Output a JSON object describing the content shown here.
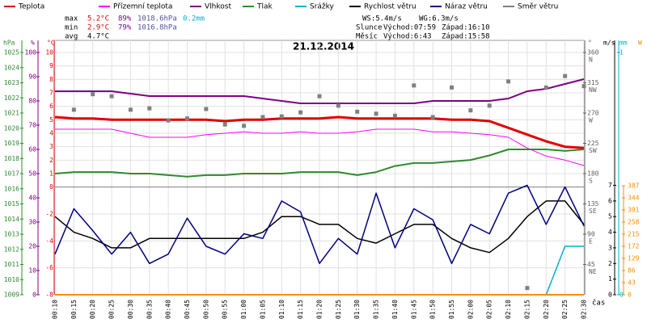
{
  "chart_data": {
    "type": "line",
    "title": "21.12.2014",
    "x_label": "čas",
    "grid": true,
    "categories": [
      "00:10",
      "00:15",
      "00:20",
      "00:25",
      "00:30",
      "00:35",
      "00:40",
      "00:45",
      "00:50",
      "00:55",
      "01:00",
      "01:05",
      "01:10",
      "01:15",
      "01:20",
      "01:25",
      "01:30",
      "01:35",
      "01:40",
      "01:45",
      "01:50",
      "01:55",
      "02:00",
      "02:05",
      "02:10",
      "02:15",
      "02:20",
      "02:25",
      "02:30"
    ],
    "axes": [
      {
        "unit": "hPa",
        "color": "#2e8b2e",
        "ylim": [
          1009,
          1025
        ],
        "ticks": [
          1009,
          1010,
          1011,
          1012,
          1013,
          1014,
          1015,
          1016,
          1017,
          1018,
          1019,
          1020,
          1021,
          1022,
          1023,
          1024,
          1025
        ]
      },
      {
        "unit": "%",
        "color": "#800080",
        "ylim": [
          0,
          100
        ],
        "ticks": [
          0,
          10,
          20,
          30,
          40,
          50,
          60,
          70,
          80,
          90,
          100
        ]
      },
      {
        "unit": "°C",
        "color": "#e00000",
        "ylim": [
          -8,
          10
        ],
        "ticks": [
          10,
          9,
          8,
          7,
          6,
          5,
          4,
          3,
          2,
          1,
          0,
          -2,
          -4,
          -6,
          -8
        ]
      },
      {
        "unit": "°",
        "color": "#606060",
        "ylim": [
          0,
          360
        ],
        "ticks": [
          45,
          90,
          135,
          180,
          225,
          270,
          315,
          360
        ],
        "compass": [
          "NE",
          "E",
          "SE",
          "S",
          "SW",
          "W",
          "NW",
          "N"
        ]
      },
      {
        "unit": "m/s",
        "color": "#000000",
        "ylim": [
          0,
          15.5
        ],
        "ticks": [
          0,
          1,
          2,
          3,
          4,
          5,
          6,
          7
        ]
      },
      {
        "unit": "mm",
        "color": "#00b0d0",
        "ylim": [
          0,
          1
        ],
        "ticks": [
          0,
          1
        ]
      },
      {
        "unit": "W",
        "color": "#ff8c00",
        "ylim": [
          0,
          860
        ],
        "ticks": [
          0,
          43,
          86,
          129,
          172,
          215,
          258,
          301,
          344,
          387
        ]
      }
    ],
    "series": [
      {
        "name": "Teplota",
        "color": "#e00000",
        "axis": "°C",
        "width": 3,
        "values": [
          5.2,
          5.1,
          5.1,
          5.0,
          5.0,
          5.0,
          5.0,
          5.0,
          5.0,
          4.9,
          5.0,
          5.0,
          5.1,
          5.1,
          5.1,
          5.2,
          5.1,
          5.1,
          5.1,
          5.1,
          5.1,
          5.0,
          5.0,
          4.9,
          4.4,
          3.9,
          3.4,
          3.0,
          2.9
        ]
      },
      {
        "name": "Přízemní teplota",
        "color": "#ff00ff",
        "axis": "°C",
        "width": 1,
        "values": [
          4.3,
          4.3,
          4.3,
          4.3,
          4.0,
          3.7,
          3.7,
          3.7,
          3.9,
          4.0,
          4.1,
          4.0,
          4.0,
          4.1,
          4.0,
          4.0,
          4.1,
          4.3,
          4.3,
          4.3,
          4.1,
          4.1,
          4.0,
          3.9,
          3.7,
          2.9,
          2.3,
          2.0,
          1.6
        ]
      },
      {
        "name": "Vlhkost",
        "color": "#800080",
        "axis": "%",
        "width": 2,
        "values": [
          84,
          84,
          84,
          84,
          83,
          82,
          82,
          82,
          82,
          82,
          82,
          81,
          80,
          79,
          79,
          79,
          79,
          79,
          79,
          79,
          80,
          80,
          80,
          80,
          81,
          84,
          85,
          87,
          89
        ]
      },
      {
        "name": "Tlak",
        "color": "#2e8b2e",
        "axis": "hPa",
        "width": 2,
        "values": [
          1017.0,
          1017.1,
          1017.1,
          1017.1,
          1017.0,
          1017.0,
          1016.9,
          1016.8,
          1016.9,
          1016.9,
          1017.0,
          1017.0,
          1017.0,
          1017.1,
          1017.1,
          1017.1,
          1016.9,
          1017.1,
          1017.5,
          1017.7,
          1017.7,
          1017.8,
          1017.9,
          1018.2,
          1018.6,
          1018.6,
          1018.6,
          1018.5,
          1018.6
        ]
      },
      {
        "name": "Srážky",
        "color": "#00b0d0",
        "axis": "mm",
        "width": 1.5,
        "values": [
          0,
          0,
          0,
          0,
          0,
          0,
          0,
          0,
          0,
          0,
          0,
          0,
          0,
          0,
          0,
          0,
          0,
          0,
          0,
          0,
          0,
          0,
          0,
          0,
          0,
          0,
          0,
          0.2,
          0.2
        ]
      },
      {
        "name": "Rychlost větru",
        "color": "#000000",
        "axis": "m/s",
        "width": 1.5,
        "values": [
          5.0,
          4.0,
          3.6,
          3.0,
          3.0,
          3.6,
          3.6,
          3.6,
          3.6,
          3.6,
          3.6,
          4.0,
          5.0,
          5.0,
          4.5,
          4.5,
          3.6,
          3.3,
          3.9,
          4.5,
          4.5,
          3.6,
          3.0,
          2.7,
          3.6,
          5.0,
          6.0,
          6.0,
          4.5
        ]
      },
      {
        "name": "Náraz větru",
        "color": "#000080",
        "axis": "m/s",
        "width": 1.5,
        "values": [
          2.6,
          5.5,
          4.1,
          2.6,
          4.0,
          2.0,
          2.6,
          4.9,
          3.1,
          2.6,
          3.9,
          3.6,
          6.0,
          5.3,
          2.0,
          3.6,
          2.6,
          6.5,
          3.0,
          5.5,
          4.8,
          2.0,
          4.5,
          3.9,
          6.5,
          7.0,
          4.5,
          6.9,
          4.4
        ]
      },
      {
        "name": "Směr větru",
        "color": "#808080",
        "axis": "°",
        "mark": "square",
        "values": [
          null,
          275,
          298,
          295,
          275,
          277,
          259,
          262,
          276,
          253,
          251,
          264,
          265,
          271,
          295,
          281,
          272,
          269,
          266,
          311,
          264,
          308,
          274,
          281,
          317,
          10,
          308,
          325,
          310
        ]
      },
      {
        "color": "#ff8c00",
        "axis": "W",
        "width": 2,
        "values": [
          0,
          0,
          0,
          0,
          0,
          0,
          0,
          0,
          0,
          0,
          0,
          0,
          0,
          0,
          0,
          0,
          0,
          0,
          0,
          0,
          0,
          0,
          0,
          0,
          0,
          0,
          0,
          0,
          0
        ]
      }
    ],
    "stats": [
      {
        "label": "max",
        "cells": [
          {
            "text": "5.2°C",
            "color": "#e00000"
          },
          {
            "text": "89%",
            "color": "#800080"
          },
          {
            "text": "1018.6hPa",
            "color": "#5050a0"
          },
          {
            "text": "0.2mm",
            "color": "#00b0d0"
          }
        ]
      },
      {
        "label": "min",
        "cells": [
          {
            "text": "2.9°C",
            "color": "#e00000"
          },
          {
            "text": "79%",
            "color": "#800080"
          },
          {
            "text": "1016.8hPa",
            "color": "#5050a0"
          }
        ]
      },
      {
        "label": "avg",
        "cells": [
          {
            "text": "4.7°C",
            "color": "#000000"
          }
        ]
      }
    ],
    "info": [
      [
        "WS:5.4m/s",
        "WG:6.3m/s"
      ],
      [
        "Slunce",
        "Východ:07:59",
        "Západ:16:10"
      ],
      [
        "Měsíc",
        "Východ:6:43",
        "Západ:15:58"
      ]
    ]
  }
}
